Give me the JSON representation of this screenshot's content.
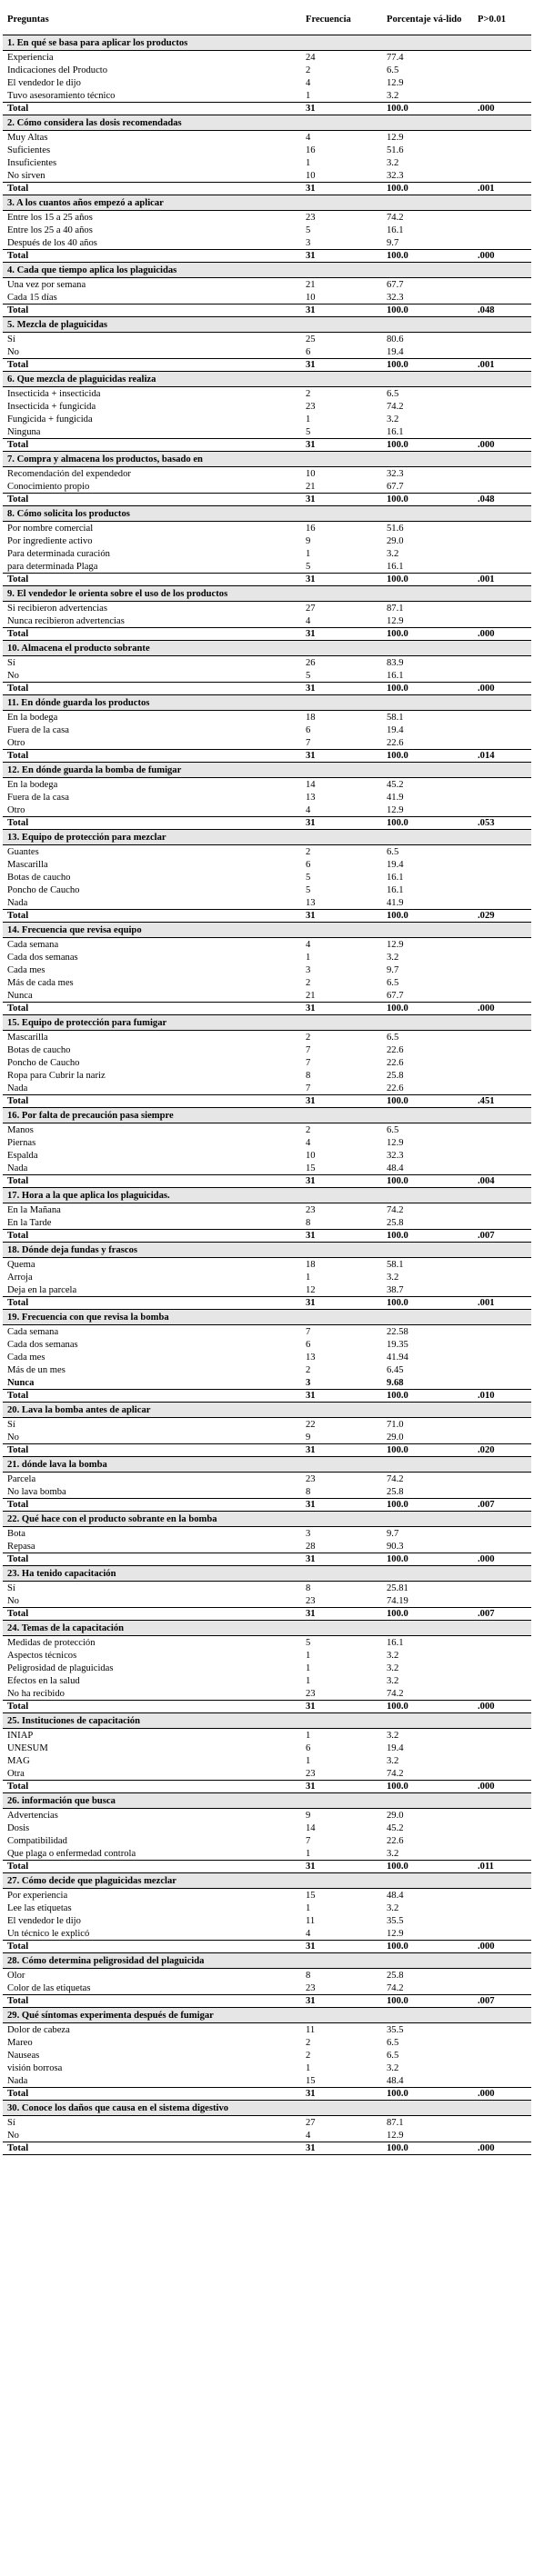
{
  "header": {
    "col1": "Preguntas",
    "col2": "Frecuencia",
    "col3": "Porcentaje vá-lido",
    "col4": "P>0.01"
  },
  "sections": [
    {
      "title": "1. En qué se basa para aplicar los productos",
      "rows": [
        [
          "Experiencia",
          "24",
          "77.4"
        ],
        [
          "Indicaciones del Producto",
          "2",
          "6.5"
        ],
        [
          "El vendedor le dijo",
          "4",
          "12.9"
        ],
        [
          "Tuvo asesoramiento técnico",
          "1",
          "3.2"
        ]
      ],
      "total": [
        "Total",
        "31",
        "100.0",
        ".000"
      ]
    },
    {
      "title": "2. Cómo considera las dosis recomendadas",
      "rows": [
        [
          "Muy Altas",
          "4",
          "12.9"
        ],
        [
          "Suficientes",
          "16",
          "51.6"
        ],
        [
          "Insuficientes",
          "1",
          "3.2"
        ],
        [
          "No sirven",
          "10",
          "32.3"
        ]
      ],
      "total": [
        "Total",
        "31",
        "100.0",
        ".001"
      ]
    },
    {
      "title": "3. A los cuantos años empezó a aplicar",
      "rows": [
        [
          "Entre los 15 a 25 años",
          "23",
          "74.2"
        ],
        [
          "Entre los 25 a 40 años",
          "5",
          "16.1"
        ],
        [
          "Después de los 40 años",
          "3",
          "9.7"
        ]
      ],
      "total": [
        "Total",
        "31",
        "100.0",
        ".000"
      ]
    },
    {
      "title": "4. Cada que tiempo aplica los plaguicidas",
      "rows": [
        [
          "Una vez por semana",
          "21",
          "67.7"
        ],
        [
          "Cada 15 días",
          "10",
          "32.3"
        ]
      ],
      "total": [
        "Total",
        "31",
        "100.0",
        ".048"
      ]
    },
    {
      "title": "5. Mezcla de plaguicidas",
      "rows": [
        [
          "Sí",
          "25",
          "80.6"
        ],
        [
          "No",
          "6",
          "19.4"
        ]
      ],
      "total": [
        "Total",
        "31",
        "100.0",
        ".001"
      ]
    },
    {
      "title": "6. Que mezcla de plaguicidas realiza",
      "rows": [
        [
          "Insecticida + insecticida",
          "2",
          "6.5"
        ],
        [
          "Insecticida + fungicida",
          "23",
          "74.2"
        ],
        [
          "Fungicida + fungicida",
          "1",
          "3.2"
        ],
        [
          "Ninguna",
          "5",
          "16.1"
        ]
      ],
      "total": [
        "Total",
        "31",
        "100.0",
        ".000"
      ]
    },
    {
      "title": "7. Compra y almacena los productos, basado en",
      "rows": [
        [
          "Recomendación del expendedor",
          "10",
          "32.3"
        ],
        [
          "Conocimiento propio",
          "21",
          "67.7"
        ]
      ],
      "total": [
        "Total",
        "31",
        "100.0",
        ".048"
      ]
    },
    {
      "title": "8. Cómo solicita los productos",
      "rows": [
        [
          "Por nombre comercial",
          "16",
          "51.6"
        ],
        [
          "Por ingrediente activo",
          "9",
          "29.0"
        ],
        [
          "Para determinada curación",
          "1",
          "3.2"
        ],
        [
          "para determinada Plaga",
          "5",
          "16.1"
        ]
      ],
      "total": [
        "Total",
        "31",
        "100.0",
        ".001"
      ]
    },
    {
      "title": "9. El vendedor le orienta sobre el uso de los productos",
      "rows": [
        [
          "Si recibieron advertencias",
          "27",
          "87.1"
        ],
        [
          "Nunca recibieron advertencias",
          "4",
          "12.9"
        ]
      ],
      "total": [
        "Total",
        "31",
        "100.0",
        ".000"
      ]
    },
    {
      "title": "10. Almacena el producto sobrante",
      "rows": [
        [
          "Sí",
          "26",
          "83.9"
        ],
        [
          "No",
          "5",
          "16.1"
        ]
      ],
      "total": [
        "Total",
        "31",
        "100.0",
        ".000"
      ]
    },
    {
      "title": "11. En dónde guarda los productos",
      "rows": [
        [
          "En la bodega",
          "18",
          "58.1"
        ],
        [
          "Fuera de la casa",
          "6",
          "19.4"
        ],
        [
          "Otro",
          "7",
          "22.6"
        ]
      ],
      "total": [
        "Total",
        "31",
        "100.0",
        ".014"
      ]
    },
    {
      "title": "12. En dónde guarda la bomba de fumigar",
      "rows": [
        [
          "En la bodega",
          "14",
          "45.2"
        ],
        [
          "Fuera de la casa",
          "13",
          "41.9"
        ],
        [
          "Otro",
          "4",
          "12.9"
        ]
      ],
      "total": [
        "Total",
        "31",
        "100.0",
        ".053"
      ]
    },
    {
      "title": "13. Equipo de protección para mezclar",
      "rows": [
        [
          "Guantes",
          "2",
          "6.5"
        ],
        [
          "Mascarilla",
          "6",
          "19.4"
        ],
        [
          "Botas de caucho",
          "5",
          "16.1"
        ],
        [
          "Poncho de Caucho",
          "5",
          "16.1"
        ],
        [
          "Nada",
          "13",
          "41.9"
        ]
      ],
      "total": [
        "Total",
        "31",
        "100.0",
        ".029"
      ]
    },
    {
      "title": "14. Frecuencia que revisa equipo",
      "rows": [
        [
          "Cada semana",
          "4",
          "12.9"
        ],
        [
          "Cada dos semanas",
          "1",
          "3.2"
        ],
        [
          "Cada mes",
          "3",
          "9.7"
        ],
        [
          "Más de cada mes",
          "2",
          "6.5"
        ],
        [
          "Nunca",
          "21",
          "67.7"
        ]
      ],
      "total": [
        "Total",
        "31",
        "100.0",
        ".000"
      ]
    },
    {
      "title": "15. Equipo de protección para fumigar",
      "rows": [
        [
          "Mascarilla",
          "2",
          "6.5"
        ],
        [
          "Botas de caucho",
          "7",
          "22.6"
        ],
        [
          "Poncho de Caucho",
          "7",
          "22.6"
        ],
        [
          "Ropa para Cubrir la nariz",
          "8",
          "25.8"
        ],
        [
          "Nada",
          "7",
          "22.6"
        ]
      ],
      "total": [
        "Total",
        "31",
        "100.0",
        ".451"
      ]
    },
    {
      "title": "16. Por falta de precaución pasa siempre",
      "rows": [
        [
          "Manos",
          "2",
          "6.5"
        ],
        [
          "Piernas",
          "4",
          "12.9"
        ],
        [
          "Espalda",
          "10",
          "32.3"
        ],
        [
          "Nada",
          "15",
          "48.4"
        ]
      ],
      "total": [
        "Total",
        "31",
        "100.0",
        ".004"
      ]
    },
    {
      "title": "17. Hora a la que aplica los plaguicidas.",
      "rows": [
        [
          "En la Mañana",
          "23",
          "74.2"
        ],
        [
          "En la Tarde",
          "8",
          "25.8"
        ]
      ],
      "total": [
        "Total",
        "31",
        "100.0",
        ".007"
      ]
    },
    {
      "title": "18. Dónde deja fundas y frascos",
      "rows": [
        [
          "Quema",
          "18",
          "58.1"
        ],
        [
          "Arroja",
          "1",
          "3.2"
        ],
        [
          "Deja en la parcela",
          "12",
          "38.7"
        ]
      ],
      "total": [
        "Total",
        "31",
        "100.0",
        ".001"
      ]
    },
    {
      "title": "19. Frecuencia con que revisa la bomba",
      "rows": [
        [
          "Cada semana",
          "7",
          "22.58"
        ],
        [
          "Cada dos semanas",
          "6",
          "19.35"
        ],
        [
          "Cada mes",
          "13",
          "41.94"
        ],
        [
          "Más de un mes",
          "2",
          "6.45"
        ],
        [
          "Nunca",
          "3",
          "9.68"
        ]
      ],
      "total": [
        "Total",
        "31",
        "100.0",
        ".010"
      ]
    },
    {
      "title": "20. Lava la bomba antes de aplicar",
      "rows": [
        [
          "Sí",
          "22",
          "71.0"
        ],
        [
          "No",
          "9",
          "29.0"
        ]
      ],
      "total": [
        "Total",
        "31",
        "100.0",
        ".020"
      ]
    },
    {
      "title": "21. dónde lava la bomba",
      "rows": [
        [
          "Parcela",
          "23",
          "74.2"
        ],
        [
          "No lava bomba",
          "8",
          "25.8"
        ]
      ],
      "total": [
        "Total",
        "31",
        "100.0",
        ".007"
      ]
    },
    {
      "title": "22. Qué hace con el producto sobrante en la bomba",
      "rows": [
        [
          "Bota",
          "3",
          "9.7"
        ],
        [
          "Repasa",
          "28",
          "90.3"
        ]
      ],
      "total": [
        "Total",
        "31",
        "100.0",
        ".000"
      ]
    },
    {
      "title": "23. Ha tenido capacitación",
      "rows": [
        [
          "Sí",
          "8",
          "25.81"
        ],
        [
          "No",
          "23",
          "74.19"
        ]
      ],
      "total": [
        "Total",
        "31",
        "100.0",
        ".007"
      ]
    },
    {
      "title": "24. Temas de la capacitación",
      "rows": [
        [
          "Medidas de protección",
          "5",
          "16.1"
        ],
        [
          "Aspectos técnicos",
          "1",
          "3.2"
        ],
        [
          "Peligrosidad de plaguicidas",
          "1",
          "3.2"
        ],
        [
          "Efectos en la salud",
          "1",
          "3.2"
        ],
        [
          "No ha recibido",
          "23",
          "74.2"
        ]
      ],
      "total": [
        "Total",
        "31",
        "100.0",
        ".000"
      ]
    },
    {
      "title": "25. Instituciones de capacitación",
      "rows": [
        [
          "INIAP",
          "1",
          "3.2"
        ],
        [
          "UNESUM",
          "6",
          "19.4"
        ],
        [
          "MAG",
          "1",
          "3.2"
        ],
        [
          "Otra",
          "23",
          "74.2"
        ]
      ],
      "total": [
        "Total",
        "31",
        "100.0",
        ".000"
      ]
    },
    {
      "title": "26. información que busca",
      "rows": [
        [
          "Advertencias",
          "9",
          "29.0"
        ],
        [
          "Dosis",
          "14",
          "45.2"
        ],
        [
          "Compatibilidad",
          "7",
          "22.6"
        ],
        [
          "Que plaga o enfermedad controla",
          "1",
          "3.2"
        ]
      ],
      "total": [
        "Total",
        "31",
        "100.0",
        ".011"
      ]
    },
    {
      "title": "27. Cómo decide que plaguicidas mezclar",
      "rows": [
        [
          "Por experiencia",
          "15",
          "48.4"
        ],
        [
          "Lee las etiquetas",
          "1",
          "3.2"
        ],
        [
          "El vendedor le dijo",
          "11",
          "35.5"
        ],
        [
          "Un técnico le explicó",
          "4",
          "12.9"
        ]
      ],
      "total": [
        "Total",
        "31",
        "100.0",
        ".000"
      ]
    },
    {
      "title": "28. Cómo determina peligrosidad del plaguicida",
      "rows": [
        [
          "Olor",
          "8",
          "25.8"
        ],
        [
          "Color de las etiquetas",
          "23",
          "74.2"
        ]
      ],
      "total": [
        "Total",
        "31",
        "100.0",
        ".007"
      ]
    },
    {
      "title": "29. Qué síntomas experimenta después de fumigar",
      "rows": [
        [
          "Dolor de cabeza",
          "11",
          "35.5"
        ],
        [
          "Mareo",
          "2",
          "6.5"
        ],
        [
          "Nauseas",
          "2",
          "6.5"
        ],
        [
          "visión borrosa",
          "1",
          "3.2"
        ],
        [
          "Nada",
          "15",
          "48.4"
        ]
      ],
      "total": [
        "Total",
        "31",
        "100.0",
        ".000"
      ]
    },
    {
      "title": "30. Conoce los daños que causa en el sistema digestivo",
      "rows": [
        [
          "Sí",
          "27",
          "87.1"
        ],
        [
          "No",
          "4",
          "12.9"
        ]
      ],
      "total": [
        "Total",
        "31",
        "100.0",
        ".000"
      ]
    }
  ]
}
